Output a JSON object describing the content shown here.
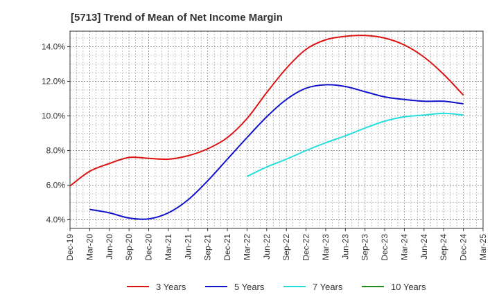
{
  "chart_data": {
    "type": "line",
    "title": "[5713]  Trend of Mean of Net Income Margin",
    "xlabel": "",
    "ylabel": "",
    "x_ticks": [
      "Dec-19",
      "Mar-20",
      "Jun-20",
      "Sep-20",
      "Dec-20",
      "Mar-21",
      "Jun-21",
      "Sep-21",
      "Dec-21",
      "Mar-22",
      "Jun-22",
      "Sep-22",
      "Dec-22",
      "Mar-23",
      "Jun-23",
      "Sep-23",
      "Dec-23",
      "Mar-24",
      "Jun-24",
      "Sep-24",
      "Dec-24",
      "Mar-25"
    ],
    "y_ticks": [
      "4.0%",
      "6.0%",
      "8.0%",
      "10.0%",
      "12.0%",
      "14.0%"
    ],
    "ylim": [
      3.5,
      14.9
    ],
    "grid": true,
    "legend_position": "bottom",
    "series": [
      {
        "name": "3 Years",
        "color": "#dd1111",
        "x": [
          "Dec-19",
          "Mar-20",
          "Jun-20",
          "Sep-20",
          "Dec-20",
          "Mar-21",
          "Jun-21",
          "Sep-21",
          "Dec-21",
          "Mar-22",
          "Jun-22",
          "Sep-22",
          "Dec-22",
          "Mar-23",
          "Jun-23",
          "Sep-23",
          "Dec-23",
          "Mar-24",
          "Jun-24",
          "Sep-24",
          "Dec-24"
        ],
        "values": [
          5.95,
          6.8,
          7.25,
          7.6,
          7.55,
          7.5,
          7.7,
          8.1,
          8.75,
          9.85,
          11.35,
          12.75,
          13.85,
          14.4,
          14.6,
          14.65,
          14.5,
          14.1,
          13.4,
          12.4,
          11.2
        ]
      },
      {
        "name": "5 Years",
        "color": "#1111cc",
        "x": [
          "Mar-20",
          "Jun-20",
          "Sep-20",
          "Dec-20",
          "Mar-21",
          "Jun-21",
          "Sep-21",
          "Dec-21",
          "Mar-22",
          "Jun-22",
          "Sep-22",
          "Dec-22",
          "Mar-23",
          "Jun-23",
          "Sep-23",
          "Dec-23",
          "Mar-24",
          "Jun-24",
          "Sep-24",
          "Dec-24"
        ],
        "values": [
          4.6,
          4.4,
          4.1,
          4.05,
          4.4,
          5.15,
          6.25,
          7.5,
          8.75,
          9.95,
          10.95,
          11.6,
          11.8,
          11.7,
          11.4,
          11.1,
          10.95,
          10.85,
          10.85,
          10.7
        ]
      },
      {
        "name": "7 Years",
        "color": "#22dddd",
        "x": [
          "Mar-22",
          "Jun-22",
          "Sep-22",
          "Dec-22",
          "Mar-23",
          "Jun-23",
          "Sep-23",
          "Dec-23",
          "Mar-24",
          "Jun-24",
          "Sep-24",
          "Dec-24"
        ],
        "values": [
          6.5,
          7.05,
          7.5,
          8.0,
          8.45,
          8.85,
          9.3,
          9.7,
          9.95,
          10.05,
          10.15,
          10.05
        ]
      },
      {
        "name": "10 Years",
        "color": "#228822",
        "x": [],
        "values": []
      }
    ]
  }
}
